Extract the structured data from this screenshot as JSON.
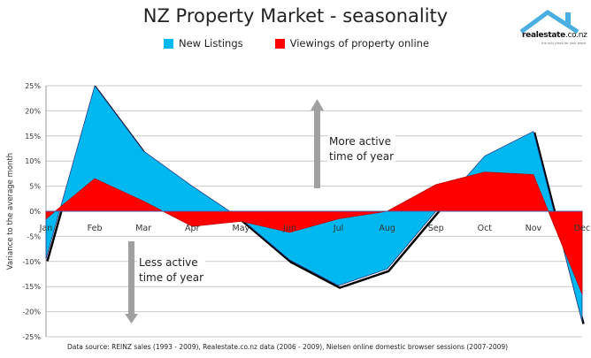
{
  "chart_data": {
    "type": "area",
    "title": "NZ Property Market - seasonality",
    "ylabel": "Variance to the average month",
    "xlabel": "",
    "categories": [
      "Jan",
      "Feb",
      "Mar",
      "Apr",
      "May",
      "Jun",
      "Jul",
      "Aug",
      "Sep",
      "Oct",
      "Nov",
      "Dec"
    ],
    "series": [
      {
        "name": "New Listings",
        "color": "#00b8f0",
        "values": [
          -9.5,
          25,
          12,
          5,
          -1.5,
          -9.7,
          -14.8,
          -11.5,
          0,
          11,
          15.9,
          -22
        ]
      },
      {
        "name": "Viewings of property online",
        "color": "#ff0000",
        "values": [
          -1.5,
          6.5,
          2,
          -3,
          -2,
          -4.2,
          -1.5,
          0,
          5.3,
          7.8,
          7.3,
          -16.5
        ]
      }
    ],
    "ylim": [
      -25,
      25
    ],
    "yticks": [
      25,
      20,
      15,
      10,
      5,
      0,
      -5,
      -10,
      -15,
      -20,
      -25
    ],
    "ytick_labels": [
      "25%",
      "20%",
      "15%",
      "10%",
      "5%",
      "0%",
      "-5%",
      "-10%",
      "-15%",
      "-20%",
      "-25%"
    ],
    "grid": true,
    "legend": "top",
    "annotations": {
      "more_active": [
        "More active",
        "time of year"
      ],
      "less_active": [
        "Less active",
        "time of year"
      ]
    },
    "source": "Data source: REINZ sales (1993 - 2009), Realestate.co.nz data (2006 - 2009), Nielsen online domestic browser sessions (2007-2009)"
  },
  "logo": {
    "name": "realestate",
    "domain": ".co.nz",
    "tagline": "the only place for your place"
  }
}
